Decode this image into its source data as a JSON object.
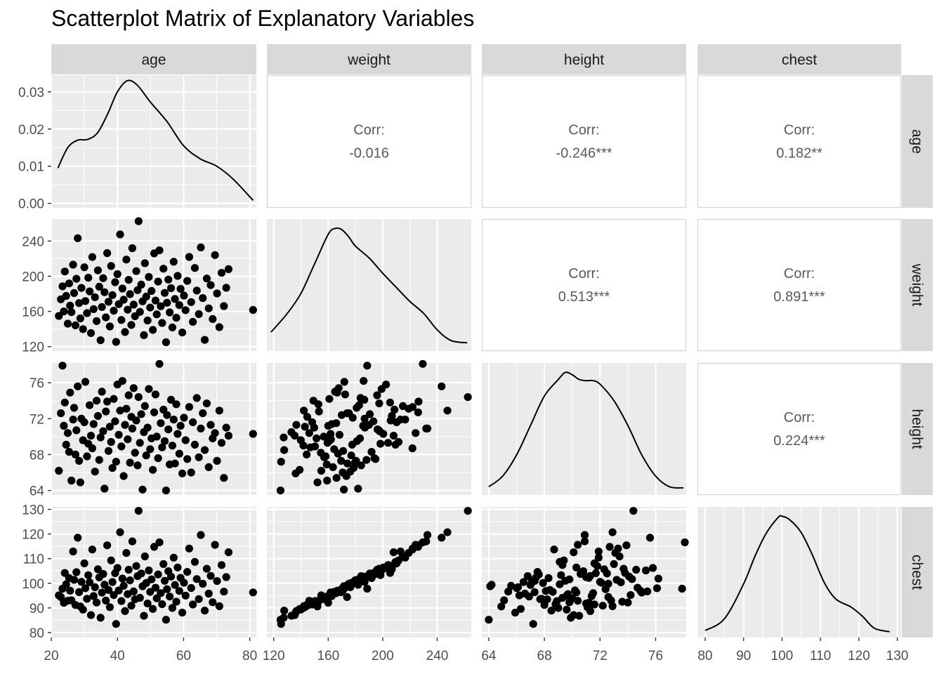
{
  "title": "Scatterplot Matrix of Explanatory Variables",
  "colors": {
    "panel_bg": "#EBEBEB",
    "grid": "#FFFFFF",
    "strip_bg": "#D9D9D9",
    "corr_panel_border": "#D9D9D9",
    "point": "#000000",
    "line": "#000000"
  },
  "chart_data": {
    "type": "scatter-matrix",
    "title": "Scatterplot Matrix of Explanatory Variables",
    "variables": [
      "age",
      "weight",
      "height",
      "chest"
    ],
    "axes": {
      "age": {
        "range": [
          20,
          82
        ],
        "ticks": [
          20,
          40,
          60,
          80
        ]
      },
      "weight": {
        "range": [
          115,
          265
        ],
        "ticks": [
          120,
          160,
          200,
          240
        ]
      },
      "height": {
        "range": [
          63.5,
          78.2
        ],
        "ticks": [
          64,
          68,
          72,
          76
        ]
      },
      "chest": {
        "range": [
          78,
          131
        ],
        "ticks": [
          80,
          90,
          100,
          110,
          120,
          130
        ]
      }
    },
    "density_axis": {
      "range": [
        -0.0012,
        0.0345
      ],
      "ticks": [
        "0.00",
        "0.01",
        "0.02",
        "0.03"
      ],
      "tick_values": [
        0,
        0.01,
        0.02,
        0.03
      ]
    },
    "densities": {
      "age": {
        "x": [
          22,
          25,
          28,
          31,
          34,
          37,
          40,
          43,
          46,
          50,
          55,
          60,
          65,
          70,
          75,
          81
        ],
        "y": [
          0.0095,
          0.015,
          0.017,
          0.0172,
          0.019,
          0.024,
          0.03,
          0.033,
          0.0318,
          0.0272,
          0.022,
          0.0155,
          0.012,
          0.01,
          0.0065,
          0.0008
        ]
      },
      "weight": {
        "x": [
          118,
          130,
          140,
          150,
          160,
          165,
          170,
          175,
          180,
          190,
          200,
          210,
          220,
          230,
          240,
          250,
          262
        ],
        "y": [
          0.12,
          0.28,
          0.45,
          0.7,
          0.95,
          1.0,
          0.99,
          0.93,
          0.85,
          0.75,
          0.62,
          0.5,
          0.38,
          0.28,
          0.14,
          0.05,
          0.03
        ]
      },
      "height": {
        "x": [
          64,
          65,
          66,
          67,
          68,
          69,
          69.5,
          70,
          70.5,
          71,
          71.5,
          72,
          73,
          74,
          75,
          76,
          77,
          78
        ],
        "y": [
          0.03,
          0.12,
          0.3,
          0.55,
          0.8,
          0.94,
          1.0,
          0.98,
          0.94,
          0.93,
          0.93,
          0.9,
          0.76,
          0.55,
          0.3,
          0.12,
          0.03,
          0.02
        ]
      },
      "chest": {
        "x": [
          80,
          85,
          90,
          93,
          96,
          99,
          100,
          102,
          105,
          108,
          111,
          114,
          118,
          121,
          124,
          128
        ],
        "y": [
          0.02,
          0.12,
          0.42,
          0.66,
          0.86,
          0.99,
          1.0,
          0.97,
          0.86,
          0.66,
          0.43,
          0.29,
          0.22,
          0.14,
          0.04,
          0.01
        ]
      }
    },
    "correlations": [
      {
        "row": "age",
        "col": "weight",
        "label": "Corr:",
        "value": "-0.016"
      },
      {
        "row": "age",
        "col": "height",
        "label": "Corr:",
        "value": "-0.246***"
      },
      {
        "row": "age",
        "col": "chest",
        "label": "Corr:",
        "value": "0.182**"
      },
      {
        "row": "weight",
        "col": "height",
        "label": "Corr:",
        "value": "0.513***"
      },
      {
        "row": "weight",
        "col": "chest",
        "label": "Corr:",
        "value": "0.891***"
      },
      {
        "row": "height",
        "col": "chest",
        "label": "Corr:",
        "value": "0.224***"
      }
    ],
    "observations": {
      "note_fields": [
        "age",
        "weight",
        "height",
        "chest"
      ],
      "rows": [
        [
          22.3,
          154.9,
          66.2,
          95.1
        ],
        [
          22.9,
          173.8,
          72.6,
          94.4
        ],
        [
          23.4,
          188.6,
          77.9,
          97.8
        ],
        [
          23.8,
          160.0,
          71.2,
          92.1
        ],
        [
          24.1,
          205.4,
          73.8,
          104.2
        ],
        [
          24.5,
          177.6,
          69.1,
          99.6
        ],
        [
          25.0,
          146.1,
          70.4,
          92.9
        ],
        [
          25.4,
          191.8,
          68.3,
          102.1
        ],
        [
          25.7,
          166.6,
          74.9,
          97.0
        ],
        [
          26.1,
          159.2,
          65.1,
          93.1
        ],
        [
          26.6,
          213.1,
          71.9,
          112.9
        ],
        [
          26.9,
          180.9,
          73.2,
          101.4
        ],
        [
          27.3,
          144.2,
          68.0,
          91.2
        ],
        [
          27.6,
          197.1,
          70.7,
          104.5
        ],
        [
          28.0,
          243.2,
          75.6,
          118.5
        ],
        [
          28.4,
          169.5,
          67.3,
          96.4
        ],
        [
          28.8,
          152.1,
          64.9,
          90.6
        ],
        [
          29.1,
          186.7,
          72.0,
          100.6
        ],
        [
          29.6,
          139.9,
          69.6,
          89.3
        ],
        [
          30.0,
          210.2,
          71.6,
          108.1
        ],
        [
          30.3,
          171.8,
          76.1,
          98.0
        ],
        [
          30.8,
          158.1,
          67.8,
          93.7
        ],
        [
          31.2,
          198.3,
          69.2,
          103.3
        ],
        [
          31.6,
          182.7,
          73.5,
          100.4
        ],
        [
          32.0,
          135.4,
          70.1,
          87.1
        ],
        [
          32.4,
          221.8,
          68.7,
          113.7
        ],
        [
          32.8,
          162.6,
          71.4,
          94.8
        ],
        [
          33.2,
          176.2,
          66.1,
          98.4
        ],
        [
          33.7,
          149.1,
          74.0,
          92.2
        ],
        [
          34.1,
          206.7,
          72.3,
          105.7
        ],
        [
          34.5,
          188.1,
          67.4,
          102.4
        ],
        [
          34.9,
          127.3,
          69.9,
          86.0
        ],
        [
          35.3,
          165.0,
          75.0,
          96.2
        ],
        [
          35.7,
          197.8,
          70.6,
          103.8
        ],
        [
          36.1,
          181.9,
          64.2,
          99.4
        ],
        [
          36.5,
          153.2,
          72.8,
          93.0
        ],
        [
          36.9,
          226.3,
          73.9,
          115.4
        ],
        [
          37.3,
          171.0,
          68.4,
          97.3
        ],
        [
          37.7,
          142.9,
          71.1,
          90.3
        ],
        [
          38.1,
          211.6,
          69.4,
          109.3
        ],
        [
          38.5,
          178.6,
          66.5,
          100.5
        ],
        [
          38.9,
          160.8,
          74.2,
          95.2
        ],
        [
          39.3,
          193.2,
          71.7,
          104.1
        ],
        [
          39.6,
          125.4,
          67.2,
          83.5
        ],
        [
          40.0,
          202.4,
          75.8,
          106.2
        ],
        [
          40.4,
          168.3,
          70.2,
          97.1
        ],
        [
          40.8,
          247.5,
          72.9,
          120.7
        ],
        [
          41.2,
          150.3,
          68.9,
          92.8
        ],
        [
          41.5,
          186.0,
          76.2,
          101.9
        ],
        [
          41.9,
          173.3,
          65.6,
          99.0
        ],
        [
          42.3,
          136.6,
          71.3,
          88.7
        ],
        [
          42.7,
          219.0,
          73.1,
          112.3
        ],
        [
          43.1,
          162.0,
          69.7,
          95.6
        ],
        [
          43.4,
          195.9,
          74.6,
          105.5
        ],
        [
          43.8,
          179.7,
          67.1,
          101.2
        ],
        [
          44.2,
          144.6,
          72.2,
          90.9
        ],
        [
          44.5,
          231.9,
          70.9,
          117.0
        ],
        [
          44.9,
          167.7,
          75.4,
          96.7
        ],
        [
          45.3,
          154.6,
          68.2,
          93.5
        ],
        [
          45.7,
          205.8,
          71.8,
          107.0
        ],
        [
          46.1,
          184.2,
          66.8,
          102.9
        ],
        [
          46.4,
          262.5,
          74.4,
          129.4
        ],
        [
          46.8,
          159.5,
          69.3,
          94.1
        ],
        [
          47.2,
          190.5,
          72.5,
          104.0
        ],
        [
          47.6,
          171.5,
          64.1,
          98.8
        ],
        [
          48.0,
          133.0,
          70.5,
          86.8
        ],
        [
          48.3,
          214.8,
          73.4,
          110.9
        ],
        [
          48.7,
          176.9,
          67.9,
          100.1
        ],
        [
          49.1,
          149.7,
          71.0,
          91.8
        ],
        [
          49.5,
          199.2,
          75.3,
          105.2
        ],
        [
          49.9,
          164.4,
          68.6,
          96.5
        ],
        [
          50.3,
          183.3,
          69.8,
          101.6
        ],
        [
          50.7,
          139.0,
          66.3,
          89.6
        ],
        [
          51.1,
          226.0,
          72.7,
          114.8
        ],
        [
          51.5,
          172.4,
          74.7,
          98.2
        ],
        [
          51.9,
          156.7,
          70.0,
          93.9
        ],
        [
          52.3,
          193.9,
          67.6,
          103.6
        ],
        [
          52.7,
          229.4,
          78.1,
          116.6
        ],
        [
          53.1,
          165.9,
          71.5,
          96.0
        ],
        [
          53.5,
          146.9,
          68.8,
          91.5
        ],
        [
          53.9,
          208.6,
          73.0,
          107.8
        ],
        [
          54.3,
          181.1,
          69.5,
          101.0
        ],
        [
          54.7,
          125.0,
          64.0,
          85.2
        ],
        [
          55.0,
          169.9,
          72.4,
          97.6
        ],
        [
          55.4,
          196.2,
          70.8,
          104.9
        ],
        [
          55.8,
          158.9,
          66.9,
          94.6
        ],
        [
          56.2,
          186.5,
          74.1,
          102.7
        ],
        [
          56.6,
          141.8,
          69.0,
          90.0
        ],
        [
          57.0,
          216.5,
          71.9,
          110.4
        ],
        [
          57.4,
          174.1,
          67.0,
          99.3
        ],
        [
          57.8,
          152.8,
          73.6,
          92.5
        ],
        [
          58.2,
          200.4,
          70.3,
          106.4
        ],
        [
          58.7,
          167.2,
          68.1,
          96.9
        ],
        [
          59.1,
          185.6,
          71.2,
          102.2
        ],
        [
          59.6,
          136.1,
          65.9,
          88.1
        ],
        [
          60.1,
          178.0,
          72.1,
          100.2
        ],
        [
          60.6,
          161.4,
          69.6,
          95.0
        ],
        [
          61.1,
          194.7,
          67.5,
          104.6
        ],
        [
          61.7,
          221.9,
          73.3,
          114.1
        ],
        [
          62.3,
          170.6,
          66.0,
          98.1
        ],
        [
          62.8,
          148.2,
          71.6,
          91.4
        ],
        [
          63.4,
          209.4,
          69.1,
          108.7
        ],
        [
          64.0,
          183.7,
          74.3,
          101.7
        ],
        [
          64.6,
          157.0,
          67.7,
          93.6
        ],
        [
          65.2,
          232.8,
          70.9,
          119.6
        ],
        [
          65.8,
          175.2,
          72.6,
          99.8
        ],
        [
          66.4,
          127.7,
          68.5,
          88.9
        ],
        [
          67.0,
          197.4,
          73.7,
          105.9
        ],
        [
          67.6,
          163.5,
          66.6,
          95.8
        ],
        [
          68.2,
          189.9,
          71.3,
          103.0
        ],
        [
          68.8,
          151.4,
          69.8,
          92.3
        ],
        [
          69.5,
          224.1,
          70.4,
          115.6
        ],
        [
          70.1,
          180.4,
          67.3,
          100.9
        ],
        [
          70.8,
          142.1,
          72.9,
          90.7
        ],
        [
          71.5,
          203.9,
          69.3,
          107.4
        ],
        [
          72.2,
          166.1,
          65.4,
          96.6
        ],
        [
          72.9,
          186.9,
          71.0,
          102.5
        ],
        [
          73.6,
          208.0,
          70.1,
          112.6
        ],
        [
          81.0,
          161.7,
          70.3,
          96.3
        ]
      ]
    }
  }
}
